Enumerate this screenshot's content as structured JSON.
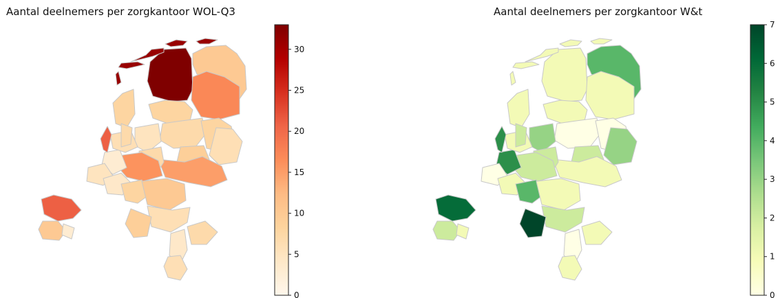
{
  "maps": [
    {
      "title": "Aantal deelnemers per zorgkantoor WOL-Q3",
      "colormap": "OrRd",
      "color_stops": [
        "#fff7ec",
        "#fee8c8",
        "#fdd49e",
        "#fdbb84",
        "#fc8d59",
        "#ef6548",
        "#d7301f",
        "#b30000",
        "#7f0000"
      ],
      "colorbar": {
        "min": 0,
        "max": 33,
        "ticks": [
          0,
          5,
          10,
          15,
          20,
          25,
          30
        ]
      },
      "regions": [
        {
          "value": 33
        },
        {
          "value": 10
        },
        {
          "value": 17
        },
        {
          "value": 8
        },
        {
          "value": 7
        },
        {
          "value": 8
        },
        {
          "value": 6
        },
        {
          "value": 9
        },
        {
          "value": 15
        },
        {
          "value": 5
        },
        {
          "value": 7
        },
        {
          "value": 16
        },
        {
          "value": 3
        },
        {
          "value": 6
        },
        {
          "value": 21
        },
        {
          "value": 8
        },
        {
          "value": 7
        },
        {
          "value": 5
        },
        {
          "value": 4
        },
        {
          "value": 8
        },
        {
          "value": 10
        },
        {
          "value": 6
        },
        {
          "value": 9
        },
        {
          "value": 21
        },
        {
          "value": 10
        },
        {
          "value": 7
        },
        {
          "value": 4
        },
        {
          "value": 6
        },
        {
          "value": 3
        },
        {
          "value": 31
        }
      ]
    },
    {
      "title": "Aantal deelnemers per zorgkantoor W&t",
      "colormap": "YlGn",
      "color_stops": [
        "#ffffe5",
        "#f7fcb9",
        "#d9f0a3",
        "#addd8e",
        "#78c679",
        "#41ab5d",
        "#238443",
        "#006837",
        "#004529"
      ],
      "colorbar": {
        "min": 0,
        "max": 7,
        "ticks": [
          0,
          1,
          2,
          3,
          4,
          5,
          6,
          7
        ]
      },
      "regions": [
        {
          "value": 1
        },
        {
          "value": 4
        },
        {
          "value": 1
        },
        {
          "value": 1
        },
        {
          "value": 0
        },
        {
          "value": 0
        },
        {
          "value": 3
        },
        {
          "value": 2
        },
        {
          "value": 1
        },
        {
          "value": 3
        },
        {
          "value": 2
        },
        {
          "value": 2
        },
        {
          "value": 5
        },
        {
          "value": 1
        },
        {
          "value": 5
        },
        {
          "value": 1
        },
        {
          "value": 2
        },
        {
          "value": 0
        },
        {
          "value": 1
        },
        {
          "value": 4
        },
        {
          "value": 1
        },
        {
          "value": 2
        },
        {
          "value": 7
        },
        {
          "value": 6
        },
        {
          "value": 2
        },
        {
          "value": 1
        },
        {
          "value": 0
        },
        {
          "value": 1
        },
        {
          "value": 1
        },
        {
          "value": 1
        }
      ]
    }
  ]
}
